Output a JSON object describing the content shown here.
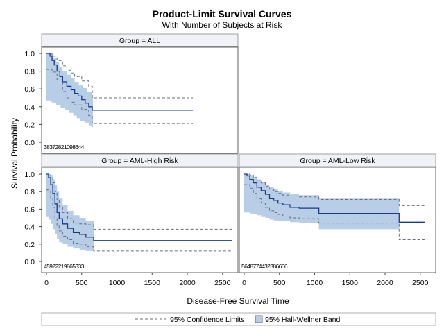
{
  "chart_data": {
    "type": "line",
    "title": "Product-Limit Survival Curves",
    "subtitle": "With Number of Subjects at Risk",
    "xlabel": "Disease-Free Survival Time",
    "ylabel": "Survival Probability",
    "xlim": [
      0,
      2640
    ],
    "ylim": [
      0,
      1
    ],
    "x_ticks": [
      0,
      500,
      1000,
      1500,
      2000,
      2500
    ],
    "y_ticks": [
      0.0,
      0.2,
      0.4,
      0.6,
      0.8,
      1.0
    ],
    "grid": false,
    "legend_position": "bottom",
    "legend": [
      {
        "label": "95% Confidence Limits",
        "kind": "dashed-line"
      },
      {
        "label": "95% Hall-Wellner Band",
        "kind": "filled-box"
      }
    ],
    "colors": {
      "curve": "#1a3a8c",
      "band": "#b8cde6",
      "limits": "#6a6a8a",
      "header_bg": "#f0f2f7"
    },
    "panels": [
      {
        "name": "Group = ALL",
        "at_risk_text": "38372821098644",
        "survival": [
          [
            0,
            1.0
          ],
          [
            50,
            0.97
          ],
          [
            80,
            0.92
          ],
          [
            110,
            0.87
          ],
          [
            150,
            0.8
          ],
          [
            190,
            0.74
          ],
          [
            230,
            0.68
          ],
          [
            290,
            0.63
          ],
          [
            350,
            0.59
          ],
          [
            400,
            0.55
          ],
          [
            450,
            0.52
          ],
          [
            500,
            0.48
          ],
          [
            550,
            0.44
          ],
          [
            600,
            0.4
          ],
          [
            650,
            0.36
          ],
          [
            2080,
            0.36
          ]
        ],
        "band_upper": [
          [
            0,
            1.0
          ],
          [
            40,
            1.0
          ],
          [
            70,
            0.99
          ],
          [
            100,
            0.95
          ],
          [
            140,
            0.9
          ],
          [
            180,
            0.85
          ],
          [
            230,
            0.8
          ],
          [
            290,
            0.76
          ],
          [
            350,
            0.72
          ],
          [
            400,
            0.68
          ],
          [
            460,
            0.64
          ],
          [
            520,
            0.61
          ],
          [
            580,
            0.57
          ],
          [
            640,
            0.53
          ],
          [
            660,
            0.53
          ]
        ],
        "band_lower": [
          [
            0,
            0.47
          ],
          [
            60,
            0.45
          ],
          [
            100,
            0.44
          ],
          [
            140,
            0.42
          ],
          [
            200,
            0.39
          ],
          [
            260,
            0.36
          ],
          [
            320,
            0.33
          ],
          [
            380,
            0.3
          ],
          [
            430,
            0.27
          ],
          [
            480,
            0.24
          ],
          [
            540,
            0.22
          ],
          [
            600,
            0.19
          ],
          [
            640,
            0.17
          ],
          [
            660,
            0.17
          ]
        ],
        "ci_upper": [
          [
            0,
            1.0
          ],
          [
            80,
            0.97
          ],
          [
            150,
            0.92
          ],
          [
            230,
            0.86
          ],
          [
            290,
            0.81
          ],
          [
            350,
            0.78
          ],
          [
            400,
            0.74
          ],
          [
            500,
            0.69
          ],
          [
            600,
            0.63
          ],
          [
            650,
            0.5
          ],
          [
            2080,
            0.5
          ]
        ],
        "ci_lower": [
          [
            0,
            0.82
          ],
          [
            80,
            0.79
          ],
          [
            150,
            0.7
          ],
          [
            230,
            0.57
          ],
          [
            290,
            0.5
          ],
          [
            350,
            0.45
          ],
          [
            400,
            0.42
          ],
          [
            500,
            0.37
          ],
          [
            600,
            0.3
          ],
          [
            650,
            0.21
          ],
          [
            2080,
            0.21
          ]
        ]
      },
      {
        "name": "Group = AML-High Risk",
        "at_risk_text": "45922219865333",
        "survival": [
          [
            0,
            1.0
          ],
          [
            30,
            0.96
          ],
          [
            60,
            0.88
          ],
          [
            90,
            0.78
          ],
          [
            120,
            0.66
          ],
          [
            150,
            0.56
          ],
          [
            180,
            0.49
          ],
          [
            230,
            0.43
          ],
          [
            300,
            0.38
          ],
          [
            380,
            0.33
          ],
          [
            470,
            0.31
          ],
          [
            560,
            0.28
          ],
          [
            670,
            0.24
          ],
          [
            2640,
            0.24
          ]
        ],
        "band_upper": [
          [
            0,
            1.0
          ],
          [
            30,
            1.0
          ],
          [
            60,
            0.99
          ],
          [
            90,
            0.94
          ],
          [
            120,
            0.87
          ],
          [
            150,
            0.8
          ],
          [
            180,
            0.72
          ],
          [
            230,
            0.65
          ],
          [
            300,
            0.58
          ],
          [
            380,
            0.53
          ],
          [
            470,
            0.5
          ],
          [
            560,
            0.46
          ],
          [
            670,
            0.46
          ]
        ],
        "band_lower": [
          [
            0,
            0.51
          ],
          [
            30,
            0.48
          ],
          [
            60,
            0.43
          ],
          [
            90,
            0.37
          ],
          [
            120,
            0.31
          ],
          [
            150,
            0.26
          ],
          [
            180,
            0.22
          ],
          [
            230,
            0.2
          ],
          [
            300,
            0.17
          ],
          [
            380,
            0.15
          ],
          [
            470,
            0.13
          ],
          [
            560,
            0.12
          ],
          [
            670,
            0.1
          ]
        ],
        "ci_upper": [
          [
            0,
            1.0
          ],
          [
            60,
            0.98
          ],
          [
            90,
            0.9
          ],
          [
            120,
            0.8
          ],
          [
            150,
            0.7
          ],
          [
            180,
            0.62
          ],
          [
            230,
            0.56
          ],
          [
            300,
            0.49
          ],
          [
            380,
            0.44
          ],
          [
            470,
            0.43
          ],
          [
            560,
            0.42
          ],
          [
            670,
            0.37
          ],
          [
            2640,
            0.37
          ]
        ],
        "ci_lower": [
          [
            0,
            0.82
          ],
          [
            60,
            0.73
          ],
          [
            90,
            0.62
          ],
          [
            120,
            0.5
          ],
          [
            150,
            0.41
          ],
          [
            180,
            0.35
          ],
          [
            230,
            0.29
          ],
          [
            300,
            0.25
          ],
          [
            380,
            0.21
          ],
          [
            470,
            0.2
          ],
          [
            560,
            0.17
          ],
          [
            670,
            0.12
          ],
          [
            2640,
            0.12
          ]
        ]
      },
      {
        "name": "Group = AML-Low Risk",
        "at_risk_text": "5648774432386666",
        "survival": [
          [
            0,
            1.0
          ],
          [
            40,
            0.98
          ],
          [
            80,
            0.94
          ],
          [
            130,
            0.9
          ],
          [
            180,
            0.85
          ],
          [
            240,
            0.81
          ],
          [
            300,
            0.77
          ],
          [
            360,
            0.72
          ],
          [
            420,
            0.7
          ],
          [
            480,
            0.67
          ],
          [
            550,
            0.65
          ],
          [
            650,
            0.62
          ],
          [
            780,
            0.61
          ],
          [
            1060,
            0.55
          ],
          [
            2200,
            0.45
          ],
          [
            2560,
            0.45
          ]
        ],
        "band_upper": [
          [
            0,
            1.0
          ],
          [
            40,
            1.0
          ],
          [
            80,
            0.99
          ],
          [
            130,
            0.97
          ],
          [
            180,
            0.94
          ],
          [
            240,
            0.91
          ],
          [
            300,
            0.88
          ],
          [
            360,
            0.85
          ],
          [
            420,
            0.83
          ],
          [
            480,
            0.81
          ],
          [
            550,
            0.79
          ],
          [
            650,
            0.77
          ],
          [
            780,
            0.76
          ],
          [
            1060,
            0.72
          ],
          [
            2200,
            0.72
          ]
        ],
        "band_lower": [
          [
            0,
            0.56
          ],
          [
            80,
            0.55
          ],
          [
            130,
            0.54
          ],
          [
            180,
            0.53
          ],
          [
            240,
            0.51
          ],
          [
            300,
            0.5
          ],
          [
            360,
            0.48
          ],
          [
            420,
            0.47
          ],
          [
            480,
            0.46
          ],
          [
            550,
            0.46
          ],
          [
            650,
            0.45
          ],
          [
            780,
            0.44
          ],
          [
            1060,
            0.37
          ],
          [
            2200,
            0.37
          ]
        ],
        "ci_upper": [
          [
            0,
            1.0
          ],
          [
            80,
            0.99
          ],
          [
            130,
            0.96
          ],
          [
            180,
            0.93
          ],
          [
            240,
            0.9
          ],
          [
            300,
            0.86
          ],
          [
            360,
            0.83
          ],
          [
            420,
            0.8
          ],
          [
            480,
            0.78
          ],
          [
            550,
            0.76
          ],
          [
            650,
            0.75
          ],
          [
            780,
            0.74
          ],
          [
            1060,
            0.71
          ],
          [
            2200,
            0.64
          ],
          [
            2560,
            0.64
          ]
        ],
        "ci_lower": [
          [
            0,
            0.88
          ],
          [
            80,
            0.84
          ],
          [
            130,
            0.78
          ],
          [
            180,
            0.72
          ],
          [
            240,
            0.67
          ],
          [
            300,
            0.62
          ],
          [
            360,
            0.58
          ],
          [
            420,
            0.56
          ],
          [
            480,
            0.54
          ],
          [
            550,
            0.52
          ],
          [
            650,
            0.5
          ],
          [
            780,
            0.49
          ],
          [
            1060,
            0.44
          ],
          [
            2200,
            0.25
          ],
          [
            2560,
            0.25
          ]
        ]
      }
    ]
  }
}
